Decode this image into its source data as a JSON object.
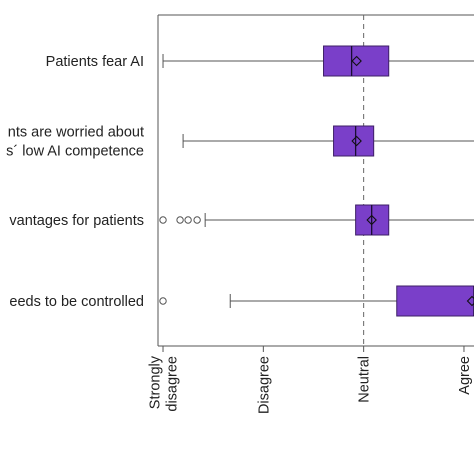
{
  "chart_data": {
    "type": "box",
    "orientation": "horizontal",
    "title": "",
    "xlabel": "",
    "ylabel": "",
    "x_ticks": [
      {
        "value": 1,
        "lines": [
          "Strongly",
          "disagree"
        ]
      },
      {
        "value": 2,
        "lines": [
          "Disagree"
        ]
      },
      {
        "value": 3,
        "lines": [
          "Neutral"
        ]
      },
      {
        "value": 4,
        "lines": [
          "Agree"
        ]
      }
    ],
    "xlim": [
      0.95,
      4.1
    ],
    "reference_line": 3,
    "box_color": "#7a3fc9",
    "box_edge_color": "#3d1f66",
    "categories": [
      {
        "lines": [
          "Patients fear AI"
        ],
        "whisker_low": 1,
        "q1": 2.6,
        "median": 2.88,
        "mean": 2.93,
        "q3": 3.25,
        "whisker_high": 4.1,
        "outliers": []
      },
      {
        "lines": [
          "nts are worried about",
          "s´ low AI competence"
        ],
        "whisker_low": 1.2,
        "q1": 2.7,
        "median": 2.92,
        "mean": 2.93,
        "q3": 3.1,
        "whisker_high": 4.1,
        "outliers": []
      },
      {
        "lines": [
          "vantages for patients"
        ],
        "whisker_low": 1.42,
        "q1": 2.92,
        "median": 3.08,
        "mean": 3.08,
        "q3": 3.25,
        "whisker_high": 4.1,
        "outliers": [
          1,
          1.17,
          1.25,
          1.34
        ]
      },
      {
        "lines": [
          "eeds to be controlled"
        ],
        "whisker_low": 1.67,
        "q1": 3.33,
        "median": 4.1,
        "mean": 4.08,
        "q3": 4.1,
        "whisker_high": 4.1,
        "outliers": [
          1
        ]
      }
    ]
  }
}
